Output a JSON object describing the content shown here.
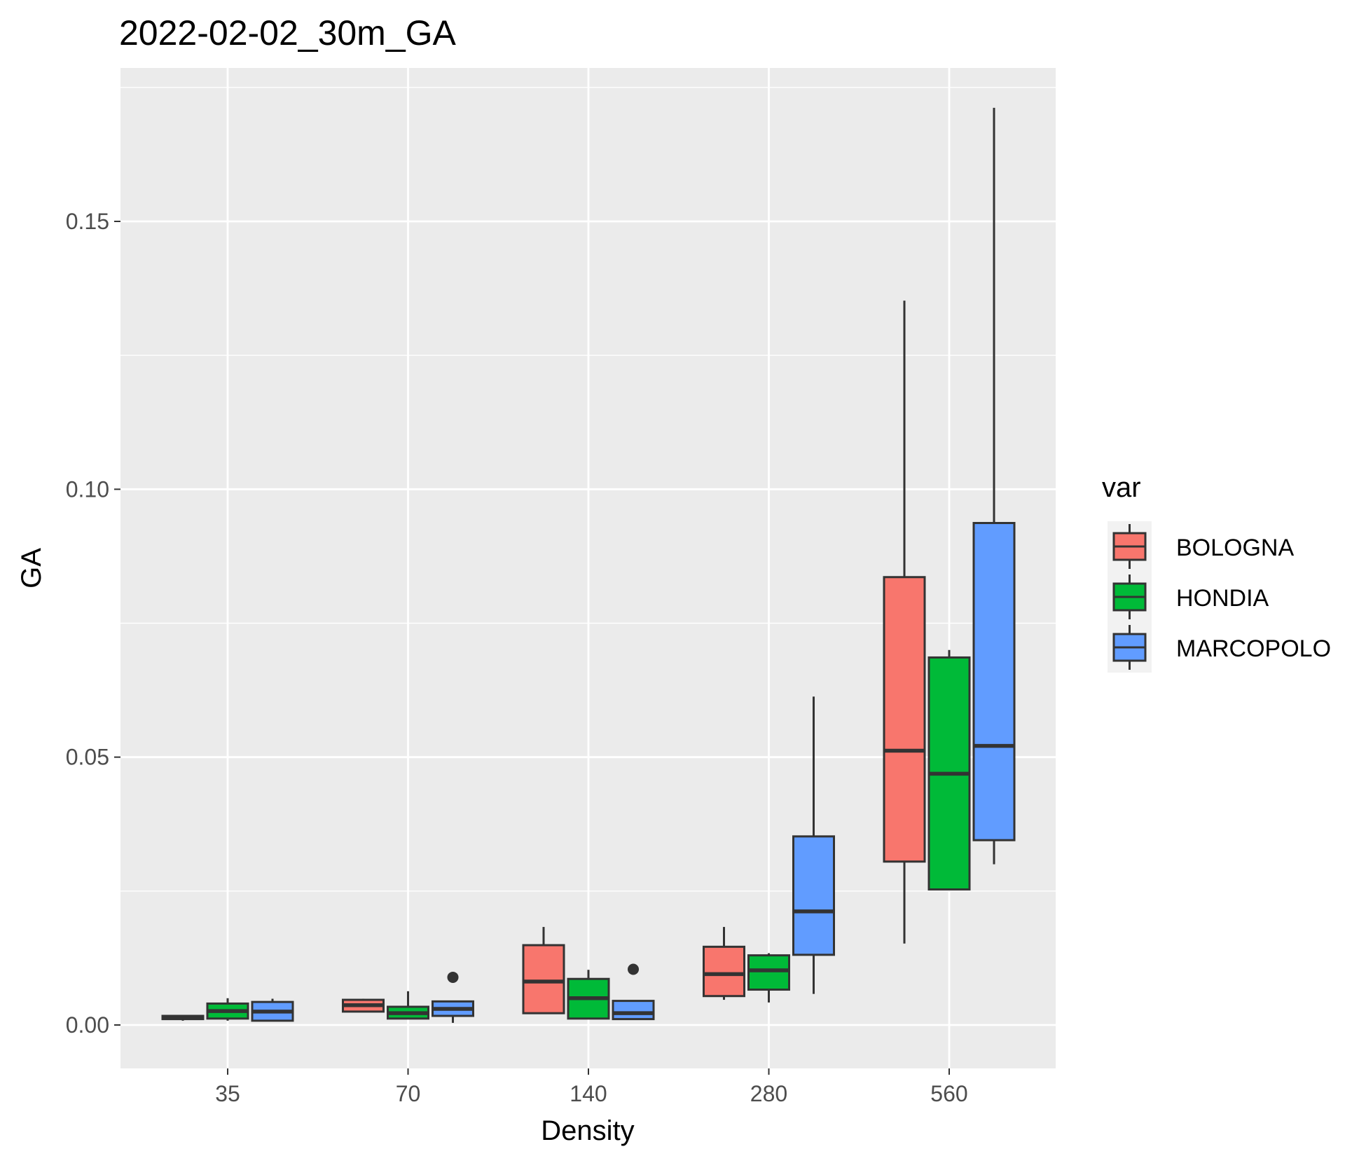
{
  "chart_data": {
    "type": "boxplot",
    "title": "2022-02-02_30m_GA",
    "xlabel": "Density",
    "ylabel": "GA",
    "categories": [
      "35",
      "70",
      "140",
      "280",
      "560"
    ],
    "ylim": [
      -0.008,
      0.178
    ],
    "yticks": [
      0.0,
      0.05,
      0.1,
      0.15
    ],
    "ytick_labels": [
      "0.00",
      "0.05",
      "0.10",
      "0.15"
    ],
    "grid": true,
    "legend": {
      "title": "var",
      "position": "right"
    },
    "series": [
      {
        "name": "BOLOGNA",
        "color": "#F8766D",
        "boxes": [
          {
            "category": "35",
            "whisker_low": 0.0008,
            "q1": 0.0011,
            "median": 0.0014,
            "q3": 0.0017,
            "whisker_high": 0.0018,
            "outliers": []
          },
          {
            "category": "70",
            "whisker_low": 0.0024,
            "q1": 0.0025,
            "median": 0.0037,
            "q3": 0.0047,
            "whisker_high": 0.0049,
            "outliers": []
          },
          {
            "category": "140",
            "whisker_low": 0.0022,
            "q1": 0.0022,
            "median": 0.0081,
            "q3": 0.0149,
            "whisker_high": 0.0183,
            "outliers": []
          },
          {
            "category": "280",
            "whisker_low": 0.0047,
            "q1": 0.0054,
            "median": 0.0095,
            "q3": 0.0146,
            "whisker_high": 0.0183,
            "outliers": []
          },
          {
            "category": "560",
            "whisker_low": 0.0152,
            "q1": 0.0305,
            "median": 0.0512,
            "q3": 0.0836,
            "whisker_high": 0.1352,
            "outliers": []
          }
        ]
      },
      {
        "name": "HONDIA",
        "color": "#00BA38",
        "boxes": [
          {
            "category": "35",
            "whisker_low": 0.0008,
            "q1": 0.0012,
            "median": 0.0026,
            "q3": 0.004,
            "whisker_high": 0.005,
            "outliers": []
          },
          {
            "category": "70",
            "whisker_low": 0.0012,
            "q1": 0.0012,
            "median": 0.0022,
            "q3": 0.0034,
            "whisker_high": 0.0063,
            "outliers": []
          },
          {
            "category": "140",
            "whisker_low": 0.0012,
            "q1": 0.0012,
            "median": 0.005,
            "q3": 0.0086,
            "whisker_high": 0.0103,
            "outliers": []
          },
          {
            "category": "280",
            "whisker_low": 0.0042,
            "q1": 0.0066,
            "median": 0.0102,
            "q3": 0.013,
            "whisker_high": 0.0134,
            "outliers": []
          },
          {
            "category": "560",
            "whisker_low": 0.0253,
            "q1": 0.0253,
            "median": 0.0469,
            "q3": 0.0686,
            "whisker_high": 0.07,
            "outliers": []
          }
        ]
      },
      {
        "name": "MARCOPOLO",
        "color": "#619CFF",
        "boxes": [
          {
            "category": "35",
            "whisker_low": 0.0007,
            "q1": 0.0008,
            "median": 0.0025,
            "q3": 0.0043,
            "whisker_high": 0.0049,
            "outliers": []
          },
          {
            "category": "70",
            "whisker_low": 0.0004,
            "q1": 0.0017,
            "median": 0.003,
            "q3": 0.0044,
            "whisker_high": 0.0044,
            "outliers": [
              0.0089
            ]
          },
          {
            "category": "140",
            "whisker_low": 0.0011,
            "q1": 0.0011,
            "median": 0.0022,
            "q3": 0.0045,
            "whisker_high": 0.0045,
            "outliers": [
              0.0104
            ]
          },
          {
            "category": "280",
            "whisker_low": 0.0058,
            "q1": 0.0131,
            "median": 0.0212,
            "q3": 0.0352,
            "whisker_high": 0.0613,
            "outliers": []
          },
          {
            "category": "560",
            "whisker_low": 0.03,
            "q1": 0.0345,
            "median": 0.0521,
            "q3": 0.0937,
            "whisker_high": 0.1712,
            "outliers": []
          }
        ]
      }
    ]
  }
}
